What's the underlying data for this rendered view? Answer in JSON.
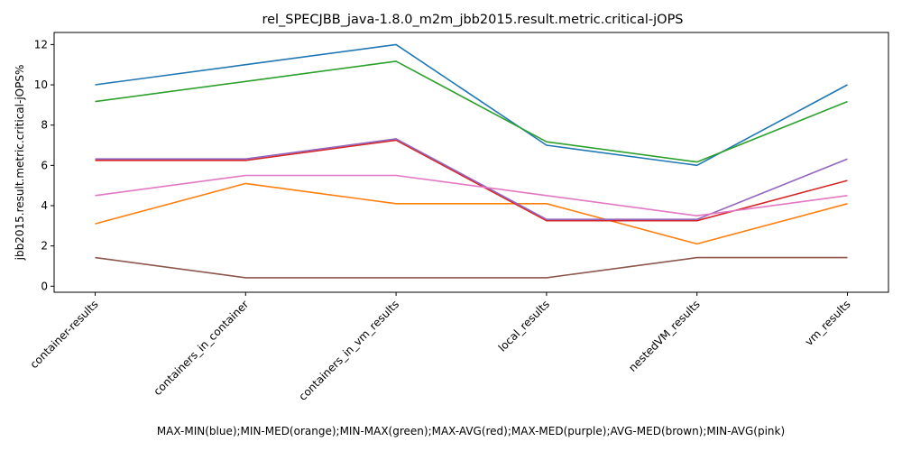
{
  "chart_data": {
    "type": "line",
    "title": "rel_SPECJBB_java-1.8.0_m2m_jbb2015.result.metric.critical-jOPS",
    "xlabel": "MAX-MIN(blue);MIN-MED(orange);MIN-MAX(green);MAX-AVG(red);MAX-MED(purple);AVG-MED(brown);MIN-AVG(pink)",
    "ylabel": "jbb2015.result.metric.critical-jOPS%",
    "categories": [
      "container-results",
      "containers_in_container",
      "containers_in_vm_results",
      "local_results",
      "nestedVM_results",
      "vm_results"
    ],
    "ylim": [
      -0.3,
      12.6
    ],
    "yticks": [
      0,
      2,
      4,
      6,
      8,
      10,
      12
    ],
    "grid": false,
    "series": [
      {
        "color": "#1f77b4",
        "values": [
          10.0,
          11.0,
          12.0,
          7.0,
          6.0,
          10.0
        ]
      },
      {
        "color": "#ff7f0e",
        "values": [
          3.1,
          5.1,
          4.1,
          4.1,
          2.1,
          4.1
        ]
      },
      {
        "color": "#2ca02c",
        "values": [
          9.17,
          10.17,
          11.17,
          7.17,
          6.17,
          9.17
        ]
      },
      {
        "color": "#d62728",
        "values": [
          6.25,
          6.25,
          7.25,
          3.25,
          3.25,
          5.25
        ]
      },
      {
        "color": "#9467bd",
        "values": [
          6.32,
          6.32,
          7.32,
          3.32,
          3.32,
          6.32
        ]
      },
      {
        "color": "#8c564b",
        "values": [
          1.42,
          0.42,
          0.42,
          0.42,
          1.42,
          1.42
        ]
      },
      {
        "color": "#e377c2",
        "values": [
          4.5,
          5.5,
          5.5,
          4.5,
          3.5,
          4.5
        ]
      }
    ]
  }
}
